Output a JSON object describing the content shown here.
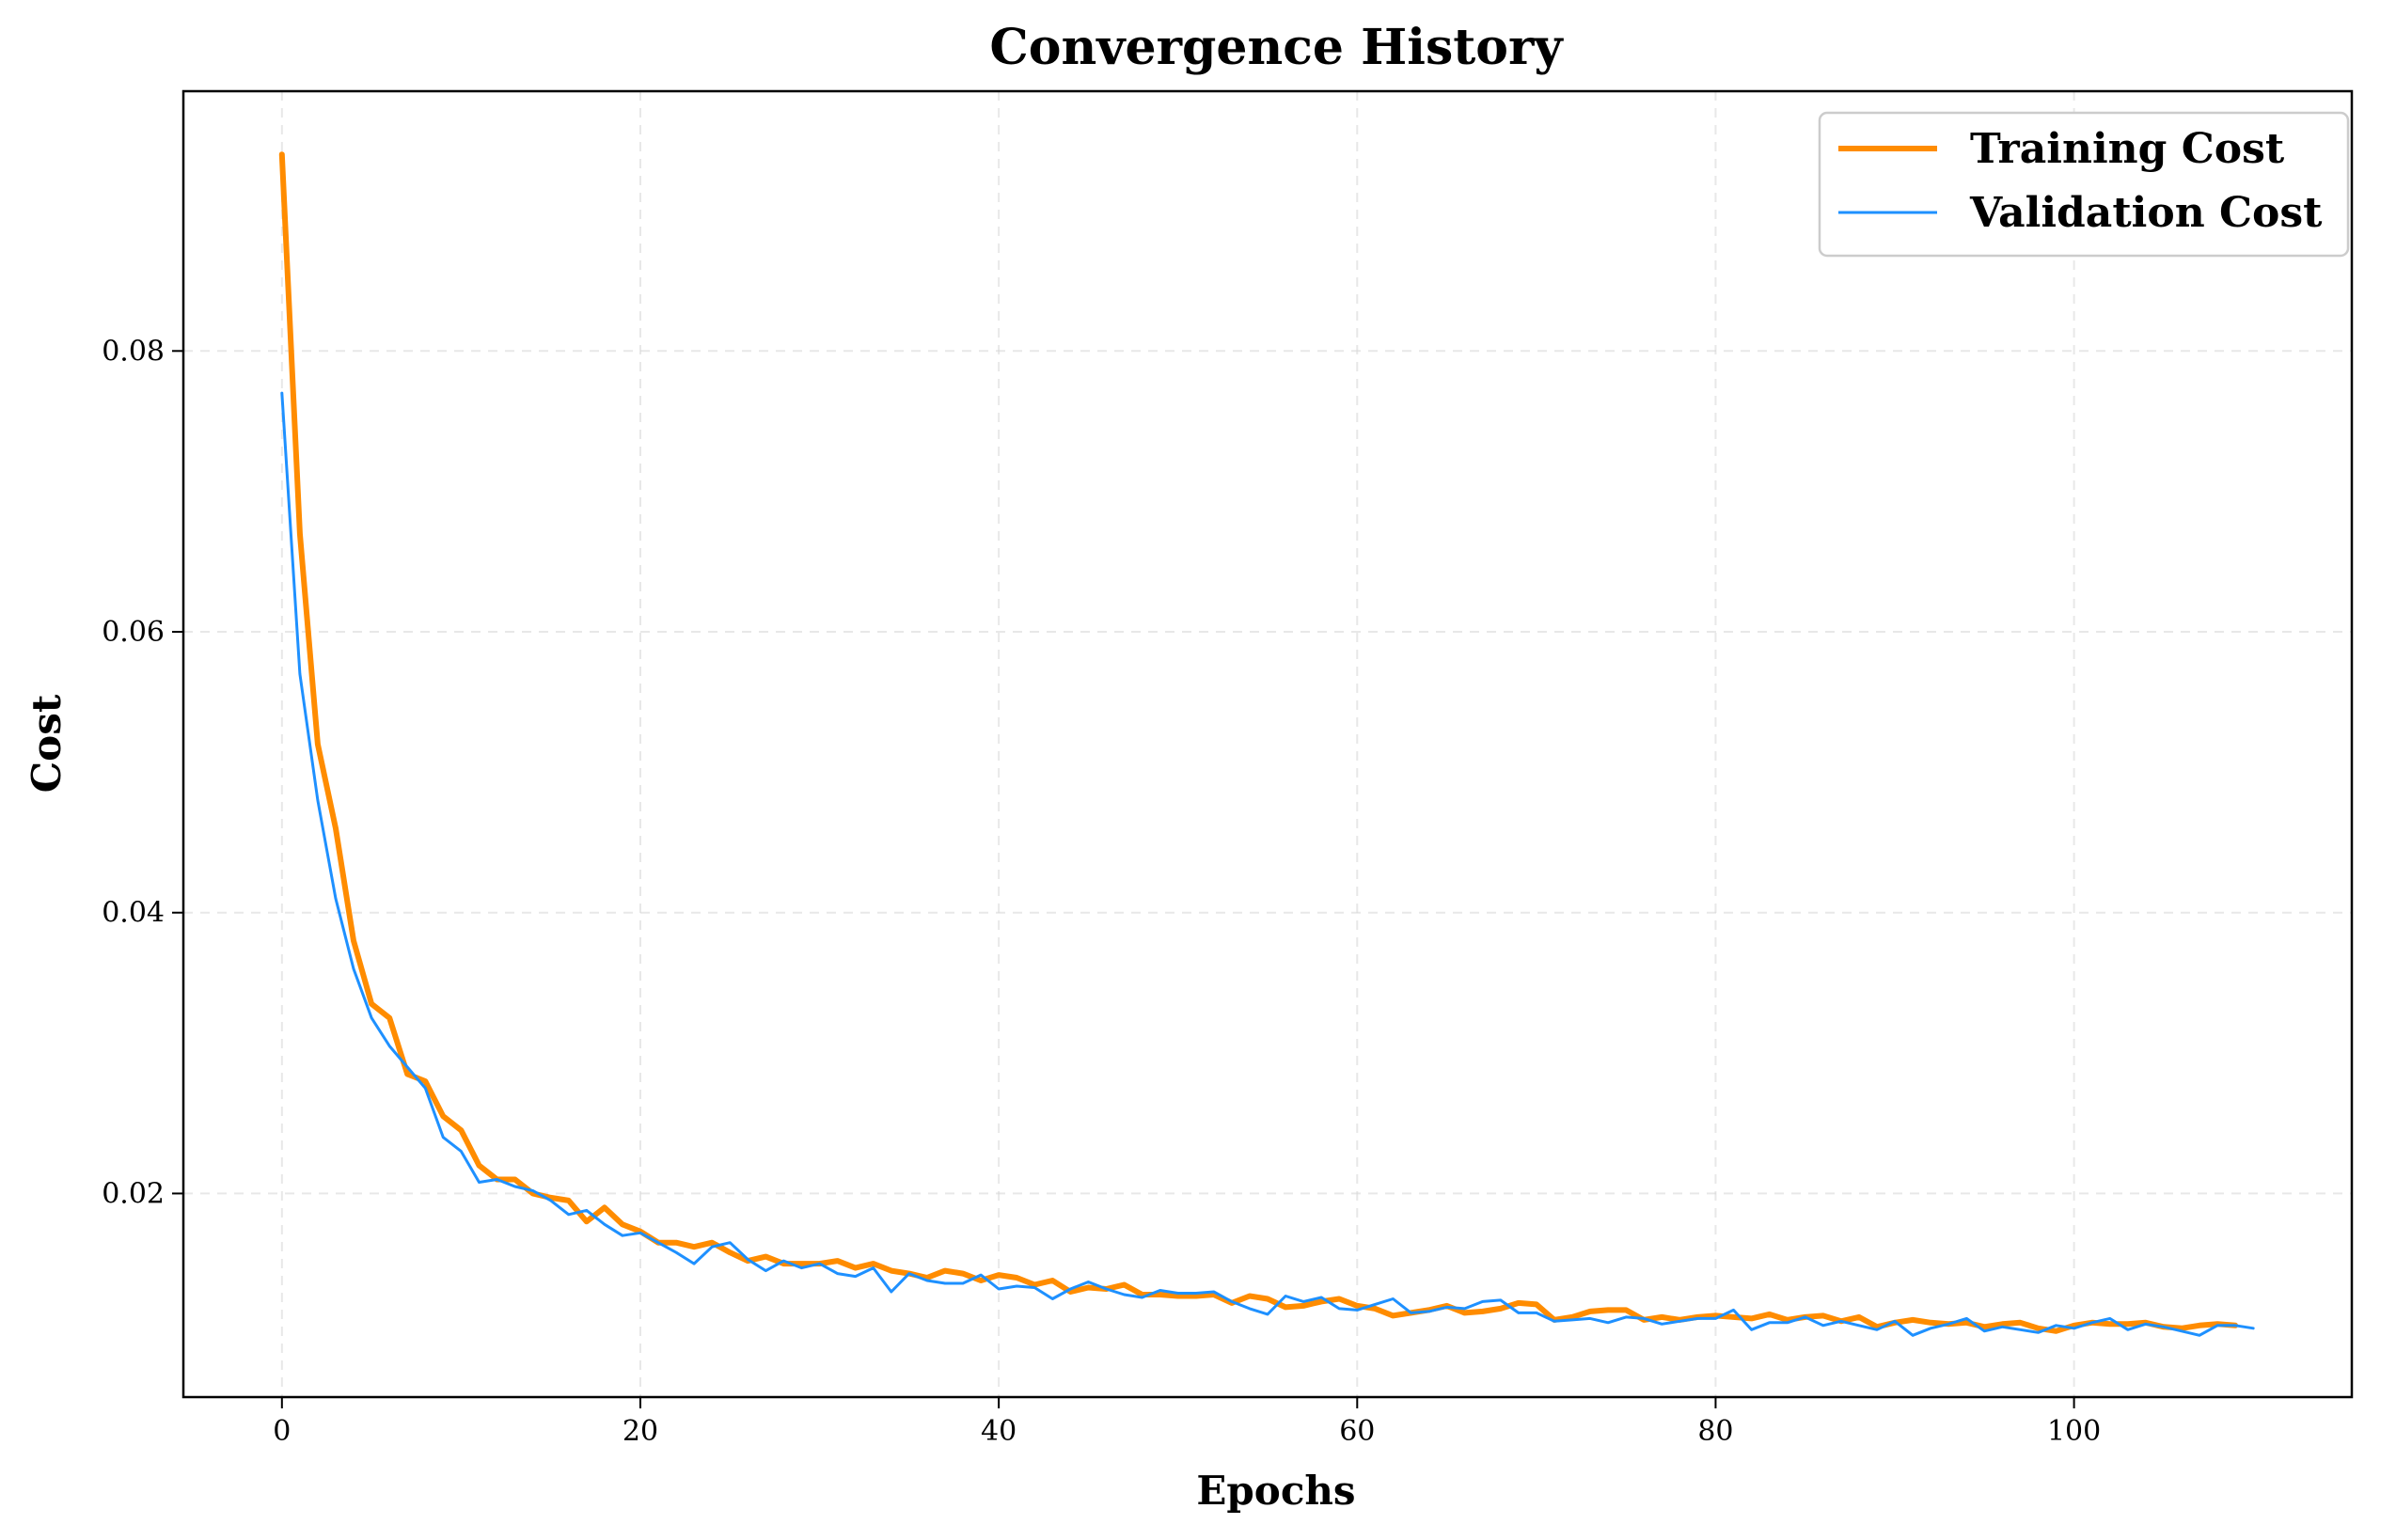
{
  "chart_data": {
    "type": "line",
    "title": "Convergence History",
    "xlabel": "Epochs",
    "ylabel": "Cost",
    "xlim": [
      -5.5,
      115.5
    ],
    "ylim": [
      0.0055,
      0.0985
    ],
    "xticks": [
      0,
      20,
      40,
      60,
      80,
      100
    ],
    "xtick_labels": [
      "0",
      "20",
      "40",
      "60",
      "80",
      "100"
    ],
    "yticks": [
      0.02,
      0.04,
      0.06,
      0.08
    ],
    "ytick_labels": [
      "0.02",
      "0.04",
      "0.06",
      "0.08"
    ],
    "grid": true,
    "legend_position": "top-right",
    "series": [
      {
        "name": "Training Cost",
        "color": "#ff8c00",
        "values": [
          0.094,
          0.067,
          0.052,
          0.046,
          0.038,
          0.0335,
          0.0325,
          0.0285,
          0.028,
          0.0255,
          0.0245,
          0.022,
          0.021,
          0.021,
          0.02,
          0.0197,
          0.0195,
          0.018,
          0.019,
          0.0178,
          0.0173,
          0.0165,
          0.0165,
          0.0162,
          0.0165,
          0.0158,
          0.0152,
          0.0155,
          0.015,
          0.015,
          0.015,
          0.0152,
          0.0147,
          0.015,
          0.0145,
          0.0143,
          0.014,
          0.0145,
          0.0143,
          0.0138,
          0.0142,
          0.014,
          0.0135,
          0.0138,
          0.013,
          0.0133,
          0.0132,
          0.0135,
          0.0128,
          0.0128,
          0.0127,
          0.0127,
          0.0128,
          0.0122,
          0.0127,
          0.0125,
          0.0119,
          0.012,
          0.0123,
          0.0125,
          0.012,
          0.0118,
          0.0113,
          0.0115,
          0.0117,
          0.012,
          0.0115,
          0.0116,
          0.0118,
          0.0122,
          0.0121,
          0.011,
          0.0112,
          0.0116,
          0.0117,
          0.0117,
          0.011,
          0.0112,
          0.011,
          0.0112,
          0.0113,
          0.0112,
          0.0111,
          0.0114,
          0.011,
          0.0112,
          0.0113,
          0.0109,
          0.0112,
          0.0105,
          0.0108,
          0.011,
          0.0108,
          0.0107,
          0.0108,
          0.0105,
          0.0107,
          0.0108,
          0.0104,
          0.0102,
          0.0106,
          0.0108,
          0.0107,
          0.0107,
          0.0108,
          0.0105,
          0.0104,
          0.0106,
          0.0107,
          0.0106
        ]
      },
      {
        "name": "Validation Cost",
        "color": "#1e90ff",
        "values": [
          0.077,
          0.057,
          0.048,
          0.041,
          0.036,
          0.0325,
          0.0305,
          0.029,
          0.0275,
          0.024,
          0.023,
          0.0208,
          0.021,
          0.0205,
          0.0202,
          0.0195,
          0.0185,
          0.0188,
          0.0178,
          0.017,
          0.0172,
          0.0165,
          0.0158,
          0.015,
          0.0162,
          0.0165,
          0.0153,
          0.0145,
          0.0152,
          0.0147,
          0.015,
          0.0143,
          0.0141,
          0.0147,
          0.013,
          0.0143,
          0.0138,
          0.0136,
          0.0136,
          0.0142,
          0.0132,
          0.0134,
          0.0133,
          0.0125,
          0.0132,
          0.0137,
          0.0132,
          0.0128,
          0.0126,
          0.0131,
          0.0129,
          0.0129,
          0.013,
          0.0123,
          0.0118,
          0.0114,
          0.0127,
          0.0123,
          0.0126,
          0.0118,
          0.0117,
          0.0121,
          0.0125,
          0.0115,
          0.0116,
          0.0119,
          0.0118,
          0.0123,
          0.0124,
          0.0115,
          0.0115,
          0.0109,
          0.011,
          0.0111,
          0.0108,
          0.0112,
          0.0111,
          0.0107,
          0.0109,
          0.0111,
          0.0111,
          0.0117,
          0.0103,
          0.0108,
          0.0108,
          0.0112,
          0.0106,
          0.0109,
          0.0106,
          0.0103,
          0.0109,
          0.0099,
          0.0104,
          0.0107,
          0.0111,
          0.0102,
          0.0105,
          0.0103,
          0.0101,
          0.0106,
          0.0104,
          0.0108,
          0.0111,
          0.0103,
          0.0107,
          0.0105,
          0.0102,
          0.0099,
          0.0106,
          0.0106,
          0.0104
        ]
      }
    ]
  }
}
